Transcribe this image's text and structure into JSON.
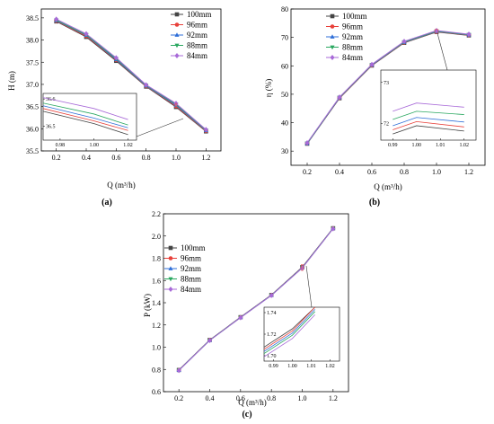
{
  "colors": {
    "100mm": "#444444",
    "96mm": "#e8403a",
    "92mm": "#2f6fd8",
    "88mm": "#2aa860",
    "84mm": "#a86ad8"
  },
  "chart_data": [
    {
      "panel": "(a)",
      "type": "line",
      "xlabel": "Q (m³/h)",
      "ylabel": "H (m)",
      "xlim": [
        0.1,
        1.3
      ],
      "ylim": [
        35.5,
        38.7
      ],
      "xticks": [
        "0.2",
        "0.4",
        "0.6",
        "0.8",
        "1.0",
        "1.2"
      ],
      "yticks": [
        "35.5",
        "36.0",
        "36.5",
        "37.0",
        "37.5",
        "38.0",
        "38.5"
      ],
      "x": [
        0.2,
        0.4,
        0.6,
        0.8,
        1.0,
        1.2
      ],
      "series": [
        {
          "name": "100mm",
          "marker": "square",
          "values": [
            38.42,
            38.07,
            37.53,
            36.95,
            36.49,
            35.94
          ]
        },
        {
          "name": "96mm",
          "marker": "circle",
          "values": [
            38.43,
            38.09,
            37.55,
            36.96,
            36.51,
            35.95
          ]
        },
        {
          "name": "92mm",
          "marker": "triangle",
          "values": [
            38.44,
            38.11,
            37.56,
            36.97,
            36.53,
            35.96
          ]
        },
        {
          "name": "88mm",
          "marker": "triangle-down",
          "values": [
            38.45,
            38.12,
            37.58,
            36.98,
            36.55,
            35.97
          ]
        },
        {
          "name": "84mm",
          "marker": "diamond",
          "values": [
            38.47,
            38.14,
            37.6,
            36.99,
            36.57,
            35.98
          ]
        }
      ],
      "inset": {
        "xlim": [
          0.97,
          1.025
        ],
        "ylim": [
          36.45,
          36.62
        ],
        "xticks": [
          "0.98",
          "1.00",
          "1.02"
        ],
        "yticks": [
          "36.5",
          "36.6"
        ],
        "x": [
          0.97,
          1.0,
          1.02
        ],
        "values": [
          [
            36.555,
            36.51,
            36.47
          ],
          [
            36.565,
            36.52,
            36.485
          ],
          [
            36.575,
            36.53,
            36.495
          ],
          [
            36.585,
            36.545,
            36.505
          ],
          [
            36.605,
            36.565,
            36.525
          ]
        ]
      }
    },
    {
      "panel": "(b)",
      "type": "line",
      "xlabel": "Q (m³/h)",
      "ylabel": "η (%)",
      "xlim": [
        0.1,
        1.3
      ],
      "ylim": [
        25,
        80
      ],
      "xticks": [
        "0.2",
        "0.4",
        "0.6",
        "0.8",
        "1.0",
        "1.2"
      ],
      "yticks": [
        "30",
        "40",
        "50",
        "60",
        "70",
        "80"
      ],
      "x": [
        0.2,
        0.4,
        0.6,
        0.8,
        1.0,
        1.2
      ],
      "series": [
        {
          "name": "100mm",
          "marker": "square",
          "values": [
            32.6,
            48.6,
            60.1,
            68.1,
            71.9,
            70.7
          ]
        },
        {
          "name": "96mm",
          "marker": "circle",
          "values": [
            32.7,
            48.7,
            60.2,
            68.2,
            72.0,
            70.8
          ]
        },
        {
          "name": "92mm",
          "marker": "triangle",
          "values": [
            32.7,
            48.8,
            60.3,
            68.3,
            72.1,
            70.9
          ]
        },
        {
          "name": "88mm",
          "marker": "triangle-down",
          "values": [
            32.8,
            48.9,
            60.4,
            68.4,
            72.2,
            71.0
          ]
        },
        {
          "name": "84mm",
          "marker": "diamond",
          "values": [
            32.9,
            49.0,
            60.5,
            68.6,
            72.4,
            71.1
          ]
        }
      ],
      "inset": {
        "xlim": [
          0.985,
          1.025
        ],
        "ylim": [
          71.6,
          73.3
        ],
        "xticks": [
          "0.99",
          "1.00",
          "1.01",
          "1.02"
        ],
        "yticks": [
          "72",
          "73"
        ],
        "x": [
          0.99,
          1.0,
          1.02
        ],
        "values": [
          [
            71.75,
            71.95,
            71.82
          ],
          [
            71.85,
            72.05,
            71.92
          ],
          [
            71.95,
            72.15,
            72.04
          ],
          [
            72.1,
            72.3,
            72.22
          ],
          [
            72.3,
            72.5,
            72.4
          ]
        ]
      }
    },
    {
      "panel": "(c)",
      "type": "line",
      "xlabel": "Q (m³/h)",
      "ylabel": "P (kW)",
      "xlim": [
        0.1,
        1.3
      ],
      "ylim": [
        0.6,
        2.2
      ],
      "xticks": [
        "0.2",
        "0.4",
        "0.6",
        "0.8",
        "1.0",
        "1.2"
      ],
      "yticks": [
        "0.6",
        "0.8",
        "1.0",
        "1.2",
        "1.4",
        "1.6",
        "1.8",
        "2.0",
        "2.2"
      ],
      "x": [
        0.2,
        0.4,
        0.6,
        0.8,
        1.0,
        1.2
      ],
      "series": [
        {
          "name": "100mm",
          "marker": "square",
          "values": [
            0.795,
            1.065,
            1.27,
            1.47,
            1.72,
            2.07
          ]
        },
        {
          "name": "96mm",
          "marker": "circle",
          "values": [
            0.794,
            1.064,
            1.269,
            1.469,
            1.718,
            2.069
          ]
        },
        {
          "name": "92mm",
          "marker": "triangle",
          "values": [
            0.793,
            1.063,
            1.268,
            1.468,
            1.716,
            2.068
          ]
        },
        {
          "name": "88mm",
          "marker": "triangle-down",
          "values": [
            0.792,
            1.062,
            1.267,
            1.467,
            1.714,
            2.067
          ]
        },
        {
          "name": "84mm",
          "marker": "diamond",
          "values": [
            0.791,
            1.061,
            1.266,
            1.466,
            1.712,
            2.066
          ]
        }
      ],
      "inset": {
        "xlim": [
          0.985,
          1.025
        ],
        "ylim": [
          1.695,
          1.745
        ],
        "xticks": [
          "0.99",
          "1.00",
          "1.01",
          "1.02"
        ],
        "yticks": [
          "1.70",
          "1.72",
          "1.74"
        ],
        "x": [
          0.985,
          1.0,
          1.012
        ],
        "values": [
          [
            1.708,
            1.725,
            1.745
          ],
          [
            1.706,
            1.723,
            1.745
          ],
          [
            1.704,
            1.721,
            1.743
          ],
          [
            1.702,
            1.719,
            1.741
          ],
          [
            1.699,
            1.716,
            1.738
          ]
        ]
      }
    }
  ]
}
